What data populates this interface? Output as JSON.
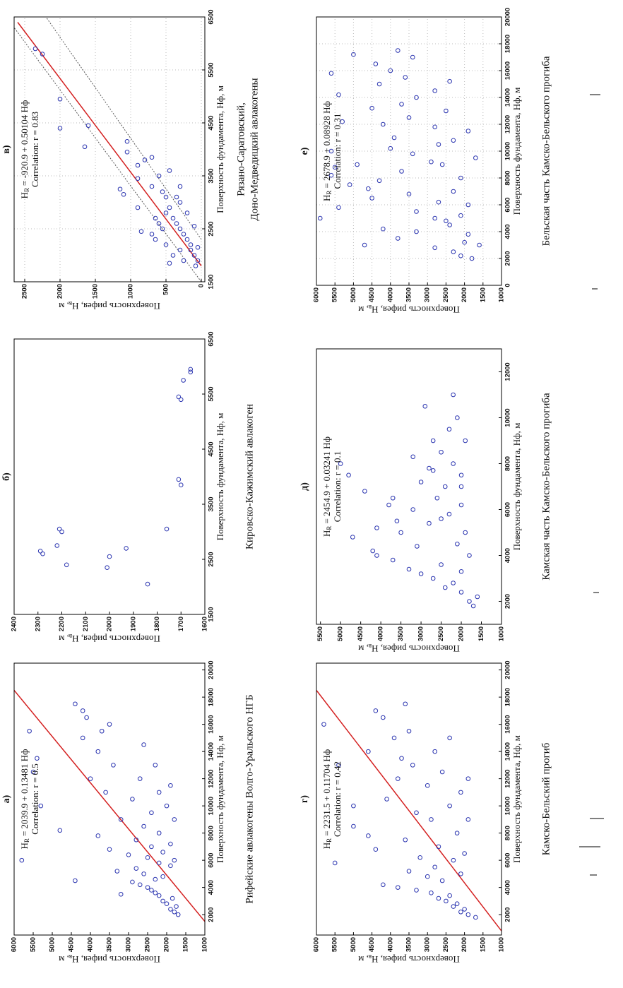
{
  "chart_data": [
    {
      "type": "scatter",
      "title": "а)",
      "equation_symbol": "H",
      "equation_subscript": "R",
      "equation": "= 2039.9 + 0.13481 Нф",
      "correlation": "Correlation: r = 0.5",
      "xlabel": "Поверхность фундамента, Нф, м",
      "ylabel": "Поверхность рифея, H",
      "ylabel_subscript": "в",
      "ylabel_end": ", м",
      "caption": [
        "Рифейские авлакогены Волго-Уральского НГБ"
      ],
      "color": "#2b35b0",
      "line_color": "#d42020",
      "grid": false,
      "xlim": [
        500,
        20500
      ],
      "xticks": [
        2000,
        4000,
        6000,
        8000,
        10000,
        12000,
        14000,
        16000,
        18000,
        20000
      ],
      "ylim": [
        1000,
        6000
      ],
      "yticks": [
        1000,
        1500,
        2000,
        2500,
        3000,
        3500,
        4000,
        4500,
        5000,
        5500,
        6000
      ],
      "fit": {
        "x": [
          1500,
          18500
        ],
        "y": [
          1000,
          6000
        ]
      },
      "x": [
        2000,
        2200,
        2400,
        2600,
        2800,
        3000,
        3200,
        3400,
        3600,
        3800,
        4000,
        4200,
        4400,
        4600,
        4800,
        5000,
        5200,
        5400,
        5600,
        5800,
        6000,
        6200,
        6400,
        6600,
        6800,
        7000,
        7200,
        7500,
        7800,
        8000,
        8200,
        8500,
        9000,
        9000,
        9500,
        10000,
        10000,
        10500,
        11000,
        11000,
        11500,
        12000,
        12000,
        12500,
        13000,
        13000,
        13500,
        14000,
        14500,
        15000,
        15500,
        15500,
        16000,
        16500,
        17000,
        17500,
        4500,
        3500,
        6000
      ],
      "values": [
        1700,
        1800,
        1900,
        1750,
        2000,
        2100,
        1850,
        2200,
        2300,
        2400,
        2500,
        2700,
        2900,
        2300,
        2100,
        2600,
        3300,
        2800,
        1900,
        2200,
        1800,
        2500,
        3000,
        2100,
        3500,
        2400,
        1900,
        2800,
        3800,
        2200,
        4800,
        2600,
        3200,
        1800,
        2400,
        2000,
        5300,
        2900,
        2200,
        3600,
        1900,
        2700,
        4000,
        5500,
        2300,
        3400,
        5400,
        3800,
        2600,
        4200,
        5600,
        3700,
        3500,
        4100,
        4200,
        4400,
        4400,
        3200,
        5800
      ]
    },
    {
      "type": "scatter",
      "title": "б)",
      "xlabel": "Поверхность фундамента, Нф, м",
      "ylabel": "Поверхность рифея, H",
      "ylabel_subscript": "в",
      "ylabel_end": ", м",
      "caption": [
        "Кировско-Кажимский авлакоген"
      ],
      "color": "#2b35b0",
      "grid": false,
      "xlim": [
        1500,
        6500
      ],
      "xticks": [
        1500,
        2500,
        3500,
        4500,
        5500,
        6500
      ],
      "ylim": [
        1600,
        2400
      ],
      "yticks": [
        1600,
        1700,
        1800,
        1900,
        2000,
        2100,
        2200,
        2300,
        2400
      ],
      "x": [
        2050,
        2350,
        2400,
        2550,
        2600,
        2650,
        2700,
        2750,
        3000,
        3050,
        3050,
        3850,
        3950,
        5400,
        5450,
        5750,
        5900,
        5950
      ],
      "values": [
        1840,
        2010,
        2180,
        2000,
        2280,
        2290,
        1930,
        2220,
        2200,
        2210,
        1760,
        1700,
        1710,
        1700,
        1710,
        1690,
        1660,
        1660
      ]
    },
    {
      "type": "scatter",
      "title": "в)",
      "equation_symbol": "H",
      "equation_subscript": "R",
      "equation": "= -920.9 + 0.50104 Нф",
      "correlation": "Correlation: r = 0.83",
      "xlabel": "Поверхность фундамента, Нф, м",
      "ylabel": "Поверхность рифея, H",
      "ylabel_subscript": "в",
      "ylabel_end": ", м",
      "caption": [
        "Рязано-Саратовский,",
        "Доно-Медведицкий авлакогены"
      ],
      "color": "#2b35b0",
      "line_color": "#d42020",
      "grid": true,
      "xlim": [
        1500,
        6500
      ],
      "xticks": [
        1500,
        2500,
        3500,
        4500,
        5500,
        6500
      ],
      "ylim": [
        -50,
        2650
      ],
      "yticks": [
        0,
        500,
        1000,
        1500,
        2000,
        2500
      ],
      "fit": {
        "x": [
          1800,
          6400
        ],
        "y": [
          0,
          2600
        ]
      },
      "confidence": [
        {
          "x": [
            1500,
            6300
          ],
          "y": [
            0,
            2650
          ]
        },
        {
          "x": [
            2300,
            6500
          ],
          "y": [
            0,
            2200
          ]
        }
      ],
      "x": [
        5900,
        5800,
        4950,
        4400,
        4450,
        4050,
        4150,
        3950,
        3700,
        3800,
        3850,
        3450,
        3300,
        3500,
        3200,
        3100,
        3000,
        2900,
        2800,
        2700,
        2600,
        2500,
        2400,
        2300,
        2200,
        2100,
        2000,
        1900,
        1800,
        1900,
        2000,
        2100,
        2200,
        2300,
        2400,
        2500,
        2600,
        2700,
        3100,
        3300,
        3600,
        2800,
        2550,
        2150,
        1850,
        2450,
        2900,
        3250,
        3150
      ],
      "values": [
        2350,
        2250,
        2000,
        2000,
        1600,
        1650,
        1050,
        1050,
        900,
        800,
        700,
        900,
        700,
        600,
        550,
        500,
        300,
        450,
        500,
        400,
        350,
        300,
        250,
        200,
        150,
        150,
        100,
        50,
        80,
        250,
        400,
        300,
        500,
        650,
        700,
        550,
        600,
        650,
        350,
        300,
        450,
        200,
        100,
        50,
        450,
        850,
        900,
        1150,
        1100
      ]
    },
    {
      "type": "scatter",
      "title": "г)",
      "equation_symbol": "H",
      "equation_subscript": "R",
      "equation": "= 2231.5 + 0.11704  Нф",
      "correlation": "Correlation: r = 0.42",
      "xlabel": "Поверхность фундамента, Нф, м",
      "ylabel": "Поверхность рифея, H",
      "ylabel_subscript": "в",
      "ylabel_end": ", м",
      "caption": [
        "Камско-Бельский прогиб"
      ],
      "color": "#2b35b0",
      "line_color": "#d42020",
      "grid": false,
      "xlim": [
        500,
        20500
      ],
      "xticks": [
        2000,
        4000,
        6000,
        8000,
        10000,
        12000,
        14000,
        16000,
        18000,
        20000
      ],
      "ylim": [
        1000,
        6000
      ],
      "yticks": [
        1000,
        1500,
        2000,
        2500,
        3000,
        3500,
        4000,
        4500,
        5000,
        5500,
        6000
      ],
      "fit": {
        "x": [
          800,
          18500
        ],
        "y": [
          1000,
          6000
        ]
      },
      "x": [
        1800,
        2000,
        2200,
        2400,
        2600,
        2800,
        3000,
        3200,
        3400,
        3600,
        3800,
        4000,
        4200,
        4500,
        4800,
        5000,
        5200,
        5500,
        5800,
        6000,
        6200,
        6500,
        6800,
        7000,
        7500,
        7800,
        8000,
        8500,
        9000,
        9000,
        9500,
        10000,
        10000,
        10500,
        11000,
        11500,
        12000,
        12000,
        12500,
        13000,
        13000,
        13500,
        14000,
        14000,
        15000,
        15000,
        15500,
        16000,
        16500,
        17000,
        17500
      ],
      "values": [
        1700,
        1900,
        2100,
        2000,
        2300,
        2200,
        2500,
        2700,
        2400,
        2900,
        3300,
        3800,
        4200,
        2600,
        3000,
        2100,
        3500,
        2800,
        5500,
        2300,
        3200,
        2000,
        4400,
        2700,
        3600,
        4600,
        2200,
        5000,
        2900,
        1900,
        3300,
        5000,
        2400,
        4100,
        2100,
        3000,
        1900,
        3800,
        2600,
        3400,
        5400,
        3700,
        4600,
        2800,
        2400,
        3900,
        3500,
        5800,
        4200,
        4400,
        3600
      ]
    },
    {
      "type": "scatter",
      "title": "д)",
      "equation_symbol": "H",
      "equation_subscript": "R",
      "equation": "= 2454.9 + 0.03241 Нф",
      "correlation": "Correlation: r = 0.1",
      "xlabel": "Поверхность фундамента, Нф, м",
      "ylabel": "Поверхность рифея, H",
      "ylabel_subscript": "в",
      "ylabel_end": ", м",
      "caption": [
        "Камская часть Камско-Бельского прогиба"
      ],
      "color": "#2b35b0",
      "grid": false,
      "xlim": [
        1000,
        13000
      ],
      "xticks": [
        2000,
        4000,
        6000,
        8000,
        10000,
        12000
      ],
      "ylim": [
        1000,
        5600
      ],
      "yticks": [
        1000,
        1500,
        2000,
        2500,
        3000,
        3500,
        4000,
        4500,
        5000,
        5500
      ],
      "x": [
        1800,
        2000,
        2200,
        2400,
        2600,
        2800,
        3000,
        3200,
        3400,
        3600,
        3800,
        4000,
        4200,
        4400,
        4500,
        4800,
        5000,
        5000,
        5200,
        5400,
        5500,
        5800,
        6000,
        6200,
        6500,
        6500,
        6800,
        7000,
        7200,
        7500,
        7500,
        7800,
        8000,
        8000,
        8300,
        8500,
        9000,
        9000,
        9500,
        10000,
        10500,
        11000,
        3300,
        4000,
        5600,
        6200,
        7000,
        7700
      ],
      "values": [
        1700,
        1800,
        1600,
        2000,
        2400,
        2200,
        2700,
        3000,
        3300,
        2500,
        3700,
        4100,
        4200,
        3100,
        2100,
        4700,
        3500,
        1900,
        4100,
        2800,
        3600,
        2300,
        3200,
        2000,
        3700,
        2600,
        4400,
        2400,
        3000,
        4800,
        2000,
        2800,
        5000,
        2200,
        3200,
        2500,
        1900,
        2700,
        2300,
        2100,
        2900,
        2200,
        2000,
        1800,
        2500,
        3800,
        2000,
        2700
      ]
    },
    {
      "type": "scatter",
      "title": "е)",
      "equation_symbol": "H",
      "equation_subscript": "R",
      "equation": "= 2678.9 + 0.08928  Нф",
      "correlation": "Correlation: r = 0.31",
      "xlabel": "Поверхность фундамента, Нф, м",
      "ylabel": "Поверхность рифея, H",
      "ylabel_subscript": "в",
      "ylabel_end": ", м",
      "caption": [
        "Бельская часть Камско-Бельского прогиба"
      ],
      "color": "#2b35b0",
      "grid": true,
      "xlim": [
        0,
        20000
      ],
      "xticks": [
        0,
        2000,
        4000,
        6000,
        8000,
        10000,
        12000,
        14000,
        16000,
        18000,
        20000
      ],
      "ylim": [
        1000,
        6000
      ],
      "yticks": [
        1000,
        1500,
        2000,
        2500,
        3000,
        3500,
        4000,
        4500,
        5000,
        5500,
        6000
      ],
      "x": [
        2000,
        2200,
        2500,
        2800,
        3000,
        3200,
        3500,
        3800,
        4000,
        4200,
        4500,
        4800,
        5000,
        5200,
        5500,
        5800,
        6000,
        6200,
        6500,
        6800,
        7000,
        7200,
        7500,
        7800,
        8000,
        8200,
        8500,
        8800,
        9000,
        9200,
        9500,
        9800,
        10000,
        10200,
        10500,
        10800,
        11000,
        11500,
        11800,
        12000,
        12200,
        12500,
        13000,
        13200,
        13500,
        14000,
        14200,
        14500,
        15000,
        15200,
        15500,
        15800,
        16000,
        16500,
        17000,
        17200,
        17500,
        5000,
        3000,
        9000
      ],
      "values": [
        1800,
        2100,
        2300,
        2800,
        1600,
        2000,
        3800,
        1900,
        3300,
        4200,
        2400,
        2500,
        2800,
        2100,
        3300,
        5400,
        1900,
        2700,
        4500,
        3500,
        2300,
        4600,
        5100,
        4300,
        2100,
        5600,
        3700,
        5500,
        2600,
        2900,
        1700,
        3400,
        5600,
        4000,
        2700,
        2300,
        3900,
        1900,
        2800,
        4200,
        5300,
        3500,
        2500,
        4500,
        3700,
        3300,
        5400,
        2800,
        4300,
        2400,
        3600,
        5600,
        4000,
        4400,
        3400,
        5000,
        3800,
        5900,
        4700,
        4900
      ]
    }
  ]
}
